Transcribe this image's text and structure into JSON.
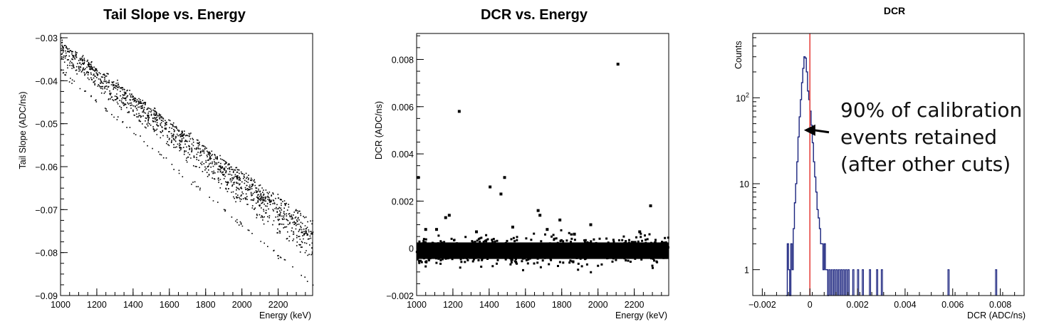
{
  "chart_data": [
    {
      "type": "scatter",
      "title": "Tail Slope vs. Energy",
      "xlabel": "Energy (keV)",
      "ylabel": "Tail Slope (ADC/ns)",
      "xlim": [
        1000,
        2390
      ],
      "ylim": [
        -0.09,
        -0.029
      ],
      "xticks": [
        1000,
        1200,
        1400,
        1600,
        1800,
        2000,
        2200
      ],
      "xtick_labels": [
        "1000",
        "1200",
        "1400",
        "1600",
        "1800",
        "2000",
        "2200"
      ],
      "yticks": [
        -0.09,
        -0.08,
        -0.07,
        -0.06,
        -0.05,
        -0.04,
        -0.03
      ],
      "ytick_labels": [
        "−0.09",
        "−0.08",
        "−0.07",
        "−0.06",
        "−0.05",
        "−0.04",
        "−0.03"
      ],
      "series": [
        {
          "x": [
            1000,
            2390
          ],
          "y": [
            -0.0315,
            -0.0755
          ]
        },
        {
          "x": [
            1000,
            2390
          ],
          "y": [
            -0.032,
            -0.073
          ]
        },
        {
          "x": [
            1000,
            2390
          ],
          "y": [
            -0.033,
            -0.077
          ]
        },
        {
          "x": [
            1000,
            2390
          ],
          "y": [
            -0.034,
            -0.079
          ]
        },
        {
          "x": [
            1000,
            2390
          ],
          "y": [
            -0.0345,
            -0.081
          ]
        },
        {
          "x": [
            1000,
            2390
          ],
          "y": [
            -0.0375,
            -0.0875
          ]
        }
      ]
    },
    {
      "type": "scatter",
      "title": "DCR vs. Energy",
      "xlabel": "Energy (keV)",
      "ylabel": "DCR (ADC/ns)",
      "xlim": [
        1000,
        2390
      ],
      "ylim": [
        -0.002,
        0.0091
      ],
      "xticks": [
        1000,
        1200,
        1400,
        1600,
        1800,
        2000,
        2200
      ],
      "xtick_labels": [
        "1000",
        "1200",
        "1400",
        "1600",
        "1800",
        "2000",
        "2200"
      ],
      "yticks": [
        -0.002,
        0,
        0.002,
        0.004,
        0.006,
        0.008
      ],
      "ytick_labels": [
        "−0.002",
        "0",
        "0.002",
        "0.004",
        "0.006",
        "0.008"
      ],
      "band": {
        "x": [
          1000,
          2390
        ],
        "center": -0.0001,
        "spread": 0.0005
      },
      "outliers": {
        "x": [
          1235,
          2110,
          1485,
          1405,
          1465,
          2290,
          1010,
          1670,
          1680,
          1790,
          1160,
          1180,
          1110,
          1530,
          1960,
          1050,
          1330,
          1720,
          2230,
          1870
        ],
        "y": [
          0.0058,
          0.0078,
          0.003,
          0.0026,
          0.0023,
          0.0018,
          0.003,
          0.0016,
          0.0014,
          0.0012,
          0.0013,
          0.0014,
          0.0008,
          0.0009,
          0.001,
          0.0008,
          0.0007,
          0.0008,
          0.0007,
          0.0006
        ]
      }
    },
    {
      "type": "histogram",
      "title": "DCR",
      "xlabel": "DCR (ADC/ns)",
      "ylabel": "Counts",
      "xlim": [
        -0.0024,
        0.009
      ],
      "ylim_log": [
        0.5,
        560
      ],
      "log_y": true,
      "xticks": [
        -0.002,
        0,
        0.002,
        0.004,
        0.006,
        0.008
      ],
      "xtick_labels": [
        "−0.002",
        "0",
        "0.002",
        "0.004",
        "0.006",
        "0.008"
      ],
      "yticks": [
        1,
        10,
        100
      ],
      "cut_value": 0.0,
      "annotation": {
        "lines": [
          "90% of calibration",
          "events retained",
          "(after other cuts)"
        ],
        "arrow_target": {
          "x": -0.00025,
          "y": 42
        }
      },
      "bins": {
        "x": [
          -0.001,
          -0.00095,
          -0.0009,
          -0.00085,
          -0.0008,
          -0.00075,
          -0.0007,
          -0.00065,
          -0.0006,
          -0.00055,
          -0.0005,
          -0.00045,
          -0.0004,
          -0.00035,
          -0.0003,
          -0.00025,
          -0.0002,
          -0.00015,
          -0.0001,
          -5e-05,
          0.0,
          5e-05,
          0.0001,
          0.00015,
          0.0002,
          0.00025,
          0.0003,
          0.00035,
          0.0004,
          0.00045,
          0.0005,
          0.00055,
          0.0006,
          0.00065,
          0.0007,
          0.00075
        ],
        "counts": [
          0,
          2,
          1,
          0.5,
          2,
          1,
          3,
          6,
          10,
          18,
          35,
          60,
          95,
          150,
          220,
          300,
          290,
          200,
          120,
          95,
          70,
          48,
          30,
          18,
          12,
          8,
          5,
          4,
          3,
          2,
          2,
          1,
          2,
          1,
          1,
          0.5
        ]
      },
      "tail_bins_x": [
        0.0008,
        0.0009,
        0.001,
        0.0011,
        0.0012,
        0.0013,
        0.0014,
        0.0015,
        0.0016,
        0.0018,
        0.002,
        0.0022,
        0.0025,
        0.0028,
        0.003,
        0.0058,
        0.0078
      ]
    }
  ]
}
